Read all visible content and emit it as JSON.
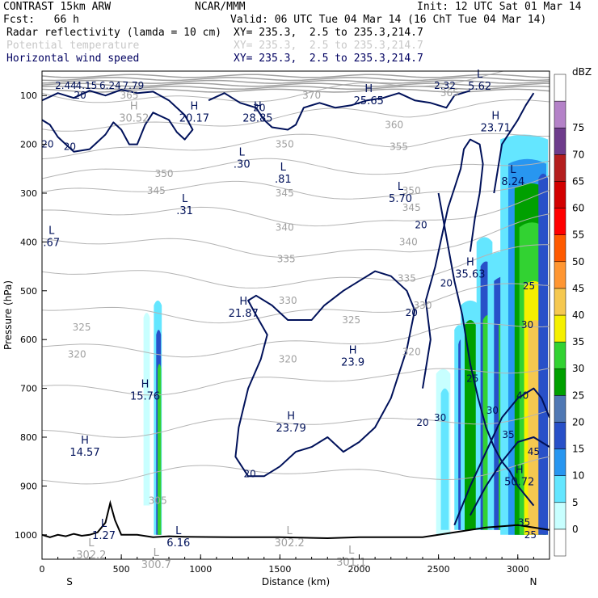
{
  "header": {
    "model": "CONTRAST 15km ARW",
    "center": "NCAR/MMM",
    "init": "Init: 12 UTC Sat 01 Mar 14",
    "fcst": "Fcst:   66 h",
    "valid": "Valid: 06 UTC Tue 04 Mar 14 (16 ChT Tue 04 Mar 14)",
    "fields": [
      {
        "name": "Radar reflectivity (lamda = 10 cm)",
        "xy": "XY= 235.3,  2.5 to 235.3,214.7",
        "color": "#000000"
      },
      {
        "name": "Potential temperature",
        "xy": "XY= 235.3,  2.5 to 235.3,214.7",
        "color": "#c8c8c8"
      },
      {
        "name": "Horizontal wind speed",
        "xy": "XY= 235.3,  2.5 to 235.3,214.7",
        "color": "#000060"
      }
    ]
  },
  "chart_data": {
    "type": "cross-section",
    "xlabel": "Distance (km)",
    "ylabel": "Pressure (hPa)",
    "xlim": [
      0,
      3200
    ],
    "ylim": [
      1050,
      50
    ],
    "x_ticks": [
      "0",
      "500",
      "1000",
      "1500",
      "2000",
      "2500",
      "3000"
    ],
    "y_ticks": [
      "100",
      "200",
      "300",
      "400",
      "500",
      "600",
      "700",
      "800",
      "900",
      "1000"
    ],
    "x_end_labels": {
      "left": "S",
      "right": "N"
    },
    "colorbar": {
      "unit": "dBZ",
      "levels": [
        "0",
        "5",
        "10",
        "15",
        "20",
        "25",
        "30",
        "35",
        "40",
        "45",
        "50",
        "55",
        "60",
        "65",
        "70",
        "75"
      ],
      "colors": [
        "#ffffff",
        "#c8ffff",
        "#64e6ff",
        "#2896f0",
        "#2850c8",
        "#5078b4",
        "#00a000",
        "#32d232",
        "#f5f000",
        "#f5c850",
        "#ff9632",
        "#ff5a00",
        "#ff0000",
        "#d20000",
        "#b41e1e",
        "#6e3c8c",
        "#b482c8",
        "#ffffff"
      ]
    },
    "theta_labels": [
      {
        "x": 550,
        "p": 100,
        "t": "365"
      },
      {
        "x": 1700,
        "p": 100,
        "t": "370"
      },
      {
        "x": 2570,
        "p": 95,
        "t": "365"
      },
      {
        "x": 2220,
        "p": 160,
        "t": "360"
      },
      {
        "x": 2250,
        "p": 205,
        "t": "355"
      },
      {
        "x": 1530,
        "p": 200,
        "t": "350"
      },
      {
        "x": 770,
        "p": 260,
        "t": "350"
      },
      {
        "x": 2330,
        "p": 295,
        "t": "350"
      },
      {
        "x": 1530,
        "p": 300,
        "t": "345"
      },
      {
        "x": 720,
        "p": 295,
        "t": "345"
      },
      {
        "x": 2330,
        "p": 330,
        "t": "345"
      },
      {
        "x": 1530,
        "p": 370,
        "t": "340"
      },
      {
        "x": 2310,
        "p": 400,
        "t": "340"
      },
      {
        "x": 1540,
        "p": 435,
        "t": "335"
      },
      {
        "x": 2300,
        "p": 475,
        "t": "335"
      },
      {
        "x": 1550,
        "p": 520,
        "t": "330"
      },
      {
        "x": 2400,
        "p": 530,
        "t": "330"
      },
      {
        "x": 1950,
        "p": 560,
        "t": "325"
      },
      {
        "x": 250,
        "p": 575,
        "t": "325"
      },
      {
        "x": 220,
        "p": 630,
        "t": "320"
      },
      {
        "x": 1550,
        "p": 640,
        "t": "320"
      },
      {
        "x": 2330,
        "p": 625,
        "t": "320"
      },
      {
        "x": 730,
        "p": 930,
        "t": "305"
      }
    ],
    "wind_labels": [
      {
        "x": 240,
        "p": 100,
        "t": "20"
      },
      {
        "x": 150,
        "p": 80,
        "t": "2.44"
      },
      {
        "x": 280,
        "p": 80,
        "t": "4.15"
      },
      {
        "x": 430,
        "p": 80,
        "t": "6.24"
      },
      {
        "x": 575,
        "p": 80,
        "t": "7.79"
      },
      {
        "x": 1370,
        "p": 125,
        "t": "20"
      },
      {
        "x": 2540,
        "p": 80,
        "t": "2.32"
      },
      {
        "x": 35,
        "p": 200,
        "t": "20"
      },
      {
        "x": 175,
        "p": 205,
        "t": "20"
      },
      {
        "x": 2390,
        "p": 365,
        "t": "20"
      },
      {
        "x": 2550,
        "p": 485,
        "t": "20"
      },
      {
        "x": 2400,
        "p": 770,
        "t": "20"
      },
      {
        "x": 1310,
        "p": 875,
        "t": "20"
      },
      {
        "x": 2330,
        "p": 545,
        "t": "20"
      },
      {
        "x": 2715,
        "p": 680,
        "t": "25"
      },
      {
        "x": 2840,
        "p": 745,
        "t": "30"
      },
      {
        "x": 2940,
        "p": 795,
        "t": "35"
      },
      {
        "x": 3030,
        "p": 715,
        "t": "40"
      },
      {
        "x": 3100,
        "p": 830,
        "t": "45"
      },
      {
        "x": 3070,
        "p": 490,
        "t": "25"
      },
      {
        "x": 3060,
        "p": 570,
        "t": "30"
      },
      {
        "x": 3040,
        "p": 975,
        "t": "35"
      },
      {
        "x": 3080,
        "p": 1000,
        "t": "25"
      },
      {
        "x": 2510,
        "p": 760,
        "t": "30"
      }
    ],
    "extrema": [
      {
        "x": 580,
        "p": 135,
        "k": "H",
        "v": "30.52"
      },
      {
        "x": 960,
        "p": 135,
        "k": "H",
        "v": "20.17"
      },
      {
        "x": 1360,
        "p": 135,
        "k": "H",
        "v": "28.85"
      },
      {
        "x": 2060,
        "p": 100,
        "k": "H",
        "v": "25.65"
      },
      {
        "x": 2760,
        "p": 70,
        "k": "L",
        "v": "5.62"
      },
      {
        "x": 2860,
        "p": 155,
        "k": "H",
        "v": "23.71"
      },
      {
        "x": 1260,
        "p": 230,
        "k": "L",
        "v": ".30"
      },
      {
        "x": 1520,
        "p": 260,
        "k": "L",
        "v": ".81"
      },
      {
        "x": 900,
        "p": 325,
        "k": "L",
        "v": ".31"
      },
      {
        "x": 2260,
        "p": 300,
        "k": "L",
        "v": "5.70"
      },
      {
        "x": 2970,
        "p": 265,
        "k": "L",
        "v": "8.24"
      },
      {
        "x": 60,
        "p": 390,
        "k": "L",
        "v": ".67"
      },
      {
        "x": 2700,
        "p": 455,
        "k": "H",
        "v": "35.63"
      },
      {
        "x": 1270,
        "p": 535,
        "k": "H",
        "v": "21.87"
      },
      {
        "x": 1960,
        "p": 635,
        "k": "H",
        "v": "23.9"
      },
      {
        "x": 650,
        "p": 705,
        "k": "H",
        "v": "15.76"
      },
      {
        "x": 1570,
        "p": 770,
        "k": "H",
        "v": "23.79"
      },
      {
        "x": 270,
        "p": 820,
        "k": "H",
        "v": "14.57"
      },
      {
        "x": 3010,
        "p": 880,
        "k": "H",
        "v": "50.72"
      },
      {
        "x": 390,
        "p": 990,
        "k": "L",
        "v": "1.27"
      },
      {
        "x": 860,
        "p": 1005,
        "k": "L",
        "v": "6.16"
      },
      {
        "x": 1560,
        "p": 1005,
        "k": "L",
        "v": "302.2"
      },
      {
        "x": 1950,
        "p": 1045,
        "k": "L",
        "v": "301.1"
      },
      {
        "x": 310,
        "p": 1030,
        "k": "L",
        "v": "302.2"
      },
      {
        "x": 720,
        "p": 1050,
        "k": "L",
        "v": "300.7"
      }
    ],
    "terrain": [
      [
        0,
        1000
      ],
      [
        50,
        1005
      ],
      [
        100,
        1000
      ],
      [
        150,
        1003
      ],
      [
        200,
        998
      ],
      [
        250,
        1002
      ],
      [
        300,
        1000
      ],
      [
        350,
        995
      ],
      [
        400,
        975
      ],
      [
        430,
        935
      ],
      [
        460,
        970
      ],
      [
        500,
        1000
      ],
      [
        600,
        1000
      ],
      [
        700,
        1005
      ],
      [
        800,
        1003
      ],
      [
        900,
        1004
      ],
      [
        1200,
        1005
      ],
      [
        1500,
        1005
      ],
      [
        1800,
        1007
      ],
      [
        2000,
        1005
      ],
      [
        2200,
        1005
      ],
      [
        2400,
        1005
      ],
      [
        2600,
        995
      ],
      [
        2800,
        985
      ],
      [
        3000,
        980
      ],
      [
        3100,
        985
      ],
      [
        3200,
        990
      ]
    ]
  }
}
